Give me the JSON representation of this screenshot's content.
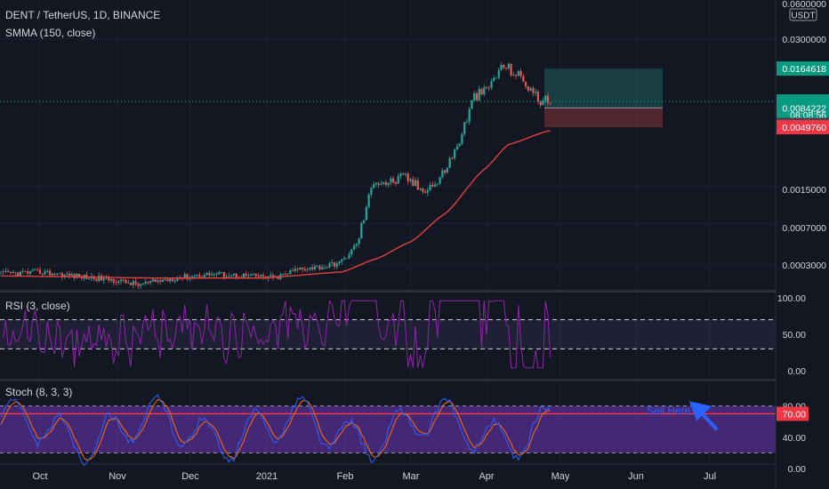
{
  "header": {
    "symbol_line": "DENT / TetherUS, 1D, BINANCE",
    "indicator_line": "SMMA (150, close)"
  },
  "price_axis": {
    "currency": "USDT",
    "top_tick": "0.0600000",
    "ticks": [
      "0.0300000",
      "0.0015000",
      "0.0007000",
      "0.0003000"
    ],
    "badges": {
      "take_profit": "0.0164618",
      "current": "0.0084222",
      "countdown": "08:08:56",
      "entry": "0.0073825",
      "stop": "0.0049760"
    }
  },
  "rsi": {
    "title": "RSI (3, close)",
    "ticks": [
      "100.00",
      "50.00",
      "0.00"
    ],
    "upper_band": 70,
    "lower_band": 30
  },
  "stoch": {
    "title": "Stoch (8, 3, 3)",
    "ticks": [
      "80.00",
      "40.00",
      "0.00"
    ],
    "level_badge": "70.00",
    "annotation": "Sell Here"
  },
  "time_axis": [
    "Oct",
    "Nov",
    "Dec",
    "2021",
    "Feb",
    "Mar",
    "Apr",
    "May",
    "Jun",
    "Jul"
  ],
  "colors": {
    "background": "#131722",
    "up": "#26a69a",
    "down": "#ef5350",
    "smma": "#e04040",
    "rsi_line": "#8e24aa",
    "stoch_k": "#2962ff",
    "stoch_d": "#ff6d00",
    "band_fill": "#7e57c2",
    "annotation": "#2962ff"
  },
  "chart_data": {
    "type": "line",
    "scale": "log",
    "price_series": {
      "name": "DENT / TetherUS",
      "x": [
        "2020-09-15",
        "2020-10-01",
        "2020-10-15",
        "2020-11-01",
        "2020-11-10",
        "2020-11-25",
        "2020-12-10",
        "2020-12-25",
        "2021-01-05",
        "2021-01-15",
        "2021-01-25",
        "2021-02-01",
        "2021-02-07",
        "2021-02-14",
        "2021-02-20",
        "2021-02-27",
        "2021-03-05",
        "2021-03-12",
        "2021-03-20",
        "2021-03-27",
        "2021-04-01",
        "2021-04-05",
        "2021-04-08",
        "2021-04-14",
        "2021-04-18",
        "2021-04-22",
        "2021-04-26"
      ],
      "y": [
        0.00025,
        0.00026,
        0.00024,
        0.00022,
        0.0002,
        0.00023,
        0.00025,
        0.00024,
        0.00023,
        0.00028,
        0.00029,
        0.00032,
        0.00045,
        0.0017,
        0.0016,
        0.0018,
        0.0014,
        0.0016,
        0.0033,
        0.0093,
        0.0105,
        0.0145,
        0.0175,
        0.0142,
        0.0115,
        0.0087,
        0.0084
      ]
    },
    "smma_series": {
      "name": "SMMA (150, close)",
      "x": [
        "2020-09-15",
        "2020-11-15",
        "2020-12-31",
        "2021-02-01",
        "2021-02-15",
        "2021-03-01",
        "2021-03-15",
        "2021-03-31",
        "2021-04-10",
        "2021-04-26"
      ],
      "y": [
        0.00024,
        0.00023,
        0.00023,
        0.00026,
        0.00034,
        0.00048,
        0.00085,
        0.0021,
        0.0035,
        0.0046
      ]
    },
    "position": {
      "entry": 0.0073825,
      "take_profit": 0.0164618,
      "stop": 0.004976,
      "current": 0.0084222
    }
  }
}
